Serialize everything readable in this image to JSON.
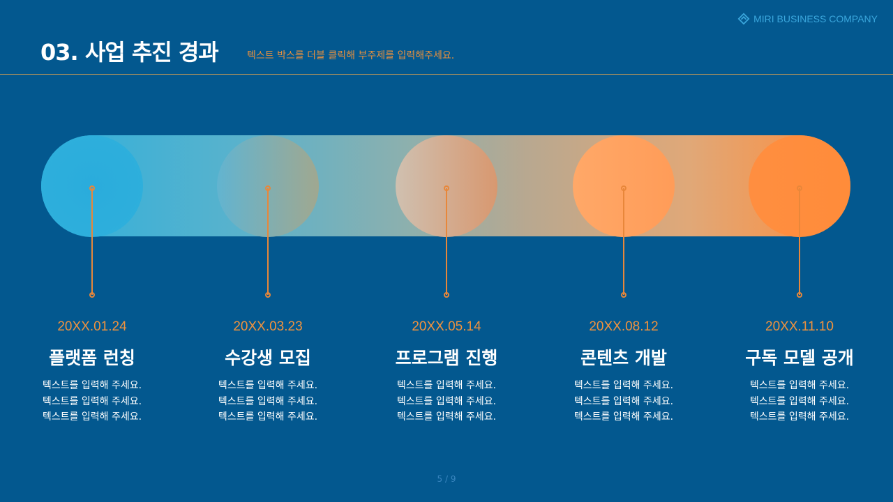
{
  "brand": {
    "name": "MIRI BUSINESS COMPANY",
    "icon": "diamond-logo-icon"
  },
  "header": {
    "title": "03. 사업 추진 경과",
    "subtitle": "텍스트 박스를 더블 클릭해 부주제를 입력해주세요."
  },
  "timeline": [
    {
      "date": "20XX.01.24",
      "title": "플랫폼 런칭",
      "lines": [
        "텍스트를 입력해 주세요.",
        "텍스트를 입력해 주세요.",
        "텍스트를 입력해 주세요."
      ],
      "color": "#2aacd8"
    },
    {
      "date": "20XX.03.23",
      "title": "수강생 모집",
      "lines": [
        "텍스트를 입력해 주세요.",
        "텍스트를 입력해 주세요.",
        "텍스트를 입력해 주세요."
      ],
      "color": "#7ab0c0"
    },
    {
      "date": "20XX.05.14",
      "title": "프로그램 진행",
      "lines": [
        "텍스트를 입력해 주세요.",
        "텍스트를 입력해 주세요.",
        "텍스트를 입력해 주세요."
      ],
      "color": "#d0aa90"
    },
    {
      "date": "20XX.08.12",
      "title": "콘텐츠 개발",
      "lines": [
        "텍스트를 입력해 주세요.",
        "텍스트를 입력해 주세요.",
        "텍스트를 입력해 주세요."
      ],
      "color": "#ffa060"
    },
    {
      "date": "20XX.11.10",
      "title": "구독 모델 공개",
      "lines": [
        "텍스트를 입력해 주세요.",
        "텍스트를 입력해 주세요.",
        "텍스트를 입력해 주세요."
      ],
      "color": "#ff8c3a"
    }
  ],
  "footer": {
    "page": "5 / 9"
  }
}
